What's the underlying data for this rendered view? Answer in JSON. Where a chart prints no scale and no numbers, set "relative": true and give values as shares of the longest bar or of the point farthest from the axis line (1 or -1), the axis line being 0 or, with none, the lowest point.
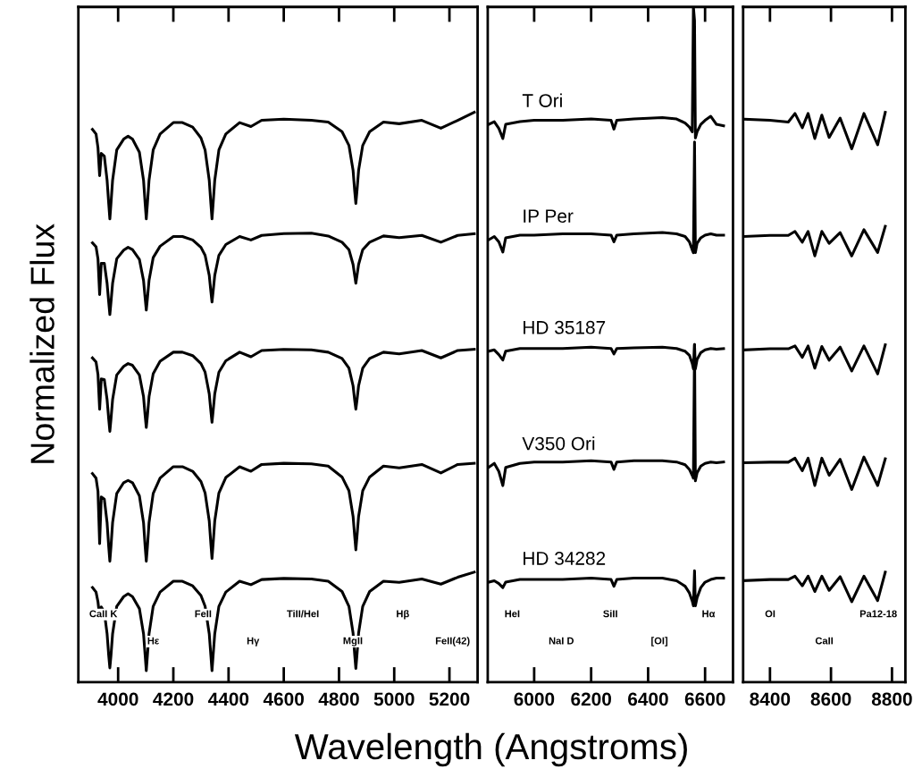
{
  "chart_data": [
    {
      "type": "line",
      "relative": true,
      "ylim": [
        0,
        1.185
      ],
      "ylabel": "Normalized Flux",
      "xlim": [
        3856,
        5302
      ],
      "xticks": [
        4000,
        4200,
        4400,
        4600,
        4800,
        5000,
        5200
      ],
      "x": [
        3907,
        3920,
        3927,
        3933,
        3939,
        3950,
        3960,
        3966,
        3970,
        3974,
        3980,
        3995,
        4020,
        4036,
        4052,
        4077,
        4092,
        4098,
        4102,
        4106,
        4112,
        4127,
        4152,
        4200,
        4233,
        4270,
        4300,
        4315,
        4330,
        4336,
        4340,
        4344,
        4350,
        4365,
        4390,
        4440,
        4481,
        4520,
        4600,
        4700,
        4761,
        4811,
        4836,
        4851,
        4857,
        4861,
        4865,
        4871,
        4886,
        4911,
        4961,
        5018,
        5100,
        5169,
        5230,
        5290
      ],
      "series": [
        {
          "color": "#000000",
          "values": [
            0.97,
            0.962,
            0.938,
            0.889,
            0.928,
            0.923,
            0.881,
            0.839,
            0.813,
            0.839,
            0.881,
            0.934,
            0.953,
            0.958,
            0.953,
            0.93,
            0.881,
            0.839,
            0.813,
            0.839,
            0.881,
            0.934,
            0.962,
            0.982,
            0.982,
            0.974,
            0.955,
            0.934,
            0.881,
            0.839,
            0.813,
            0.839,
            0.881,
            0.934,
            0.962,
            0.982,
            0.975,
            0.986,
            0.988,
            0.986,
            0.983,
            0.966,
            0.942,
            0.898,
            0.861,
            0.84,
            0.861,
            0.898,
            0.942,
            0.966,
            0.983,
            0.98,
            0.986,
            0.972,
            0.986,
            1.0
          ]
        },
        {
          "color": "#000000",
          "values": [
            0.771,
            0.764,
            0.743,
            0.68,
            0.735,
            0.735,
            0.7,
            0.666,
            0.645,
            0.666,
            0.7,
            0.743,
            0.758,
            0.763,
            0.759,
            0.742,
            0.705,
            0.673,
            0.653,
            0.673,
            0.705,
            0.745,
            0.765,
            0.782,
            0.782,
            0.776,
            0.763,
            0.749,
            0.714,
            0.685,
            0.667,
            0.685,
            0.714,
            0.749,
            0.768,
            0.782,
            0.776,
            0.784,
            0.787,
            0.788,
            0.783,
            0.772,
            0.759,
            0.733,
            0.713,
            0.7,
            0.713,
            0.733,
            0.759,
            0.772,
            0.783,
            0.78,
            0.784,
            0.772,
            0.784,
            0.787
          ]
        },
        {
          "color": "#000000",
          "values": [
            0.569,
            0.562,
            0.54,
            0.479,
            0.532,
            0.531,
            0.496,
            0.461,
            0.44,
            0.461,
            0.496,
            0.539,
            0.554,
            0.559,
            0.556,
            0.539,
            0.501,
            0.467,
            0.447,
            0.467,
            0.501,
            0.541,
            0.563,
            0.579,
            0.579,
            0.573,
            0.559,
            0.544,
            0.506,
            0.475,
            0.456,
            0.475,
            0.506,
            0.544,
            0.564,
            0.579,
            0.571,
            0.582,
            0.584,
            0.583,
            0.579,
            0.568,
            0.551,
            0.52,
            0.494,
            0.479,
            0.494,
            0.52,
            0.551,
            0.568,
            0.579,
            0.576,
            0.582,
            0.569,
            0.582,
            0.584
          ]
        },
        {
          "color": "#000000",
          "values": [
            0.366,
            0.358,
            0.335,
            0.243,
            0.325,
            0.321,
            0.28,
            0.237,
            0.212,
            0.237,
            0.28,
            0.331,
            0.35,
            0.354,
            0.35,
            0.327,
            0.28,
            0.237,
            0.212,
            0.237,
            0.28,
            0.331,
            0.358,
            0.378,
            0.378,
            0.37,
            0.352,
            0.332,
            0.283,
            0.242,
            0.217,
            0.242,
            0.283,
            0.332,
            0.359,
            0.378,
            0.37,
            0.382,
            0.384,
            0.383,
            0.379,
            0.36,
            0.336,
            0.291,
            0.255,
            0.232,
            0.255,
            0.291,
            0.336,
            0.36,
            0.379,
            0.376,
            0.382,
            0.367,
            0.382,
            0.384
          ]
        },
        {
          "color": "#000000",
          "values": [
            0.166,
            0.158,
            0.141,
            0.115,
            0.132,
            0.123,
            0.085,
            0.046,
            0.025,
            0.046,
            0.085,
            0.133,
            0.15,
            0.155,
            0.15,
            0.129,
            0.085,
            0.046,
            0.02,
            0.046,
            0.085,
            0.133,
            0.158,
            0.177,
            0.177,
            0.169,
            0.152,
            0.133,
            0.085,
            0.046,
            0.02,
            0.046,
            0.085,
            0.133,
            0.158,
            0.177,
            0.171,
            0.18,
            0.182,
            0.181,
            0.177,
            0.159,
            0.133,
            0.086,
            0.047,
            0.024,
            0.047,
            0.086,
            0.133,
            0.159,
            0.177,
            0.175,
            0.181,
            0.172,
            0.184,
            0.193
          ]
        }
      ],
      "annotations": [
        "CaII K",
        "Hε",
        "FeII",
        "Hγ",
        "TiII/HeI",
        "MgII",
        "Hβ",
        "FeII(42)"
      ]
    },
    {
      "type": "line",
      "relative": true,
      "xlabel": "Wavelength (Angstroms)",
      "xlim": [
        5837,
        6698
      ],
      "xticks": [
        6000,
        6200,
        6400,
        6600
      ],
      "x": [
        5840,
        5860,
        5876,
        5890,
        5900,
        5950,
        6000,
        6100,
        6200,
        6270,
        6280,
        6290,
        6350,
        6450,
        6500,
        6530,
        6545,
        6555,
        6559,
        6563,
        6566,
        6572,
        6585,
        6600,
        6620,
        6640,
        6665
      ],
      "series": [
        {
          "name": "T Ori",
          "color": "#000000",
          "values": [
            0.826,
            0.83,
            0.82,
            0.805,
            0.826,
            0.83,
            0.832,
            0.832,
            0.834,
            0.832,
            0.819,
            0.832,
            0.834,
            0.836,
            0.834,
            0.828,
            0.822,
            0.815,
            1.0,
            0.98,
            0.806,
            0.815,
            0.826,
            0.832,
            0.838,
            0.826,
            0.824
          ]
        },
        {
          "name": "IP Per",
          "color": "#000000",
          "values": [
            0.655,
            0.66,
            0.652,
            0.637,
            0.658,
            0.662,
            0.662,
            0.664,
            0.664,
            0.662,
            0.652,
            0.662,
            0.664,
            0.666,
            0.664,
            0.66,
            0.652,
            0.64,
            0.636,
            0.8,
            0.636,
            0.65,
            0.658,
            0.662,
            0.664,
            0.662,
            0.662
          ]
        },
        {
          "name": "HD 35187",
          "color": "#000000",
          "values": [
            0.49,
            0.492,
            0.485,
            0.477,
            0.49,
            0.494,
            0.494,
            0.494,
            0.496,
            0.494,
            0.486,
            0.494,
            0.495,
            0.496,
            0.494,
            0.49,
            0.484,
            0.472,
            0.464,
            0.5,
            0.464,
            0.478,
            0.488,
            0.492,
            0.494,
            0.493,
            0.494
          ]
        },
        {
          "name": "V350 Ori",
          "color": "#000000",
          "values": [
            0.318,
            0.324,
            0.312,
            0.291,
            0.318,
            0.324,
            0.326,
            0.326,
            0.328,
            0.326,
            0.315,
            0.326,
            0.328,
            0.328,
            0.326,
            0.322,
            0.315,
            0.306,
            0.302,
            0.5,
            0.298,
            0.31,
            0.32,
            0.324,
            0.326,
            0.325,
            0.326
          ]
        },
        {
          "name": "HD 34282",
          "color": "#000000",
          "values": [
            0.148,
            0.15,
            0.146,
            0.14,
            0.148,
            0.152,
            0.152,
            0.152,
            0.154,
            0.152,
            0.142,
            0.152,
            0.154,
            0.154,
            0.15,
            0.142,
            0.132,
            0.12,
            0.113,
            0.165,
            0.113,
            0.125,
            0.14,
            0.148,
            0.152,
            0.154,
            0.154
          ]
        }
      ],
      "annotations": [
        "HeI",
        "NaI D",
        "SiII",
        "[OI]",
        "Hα"
      ]
    },
    {
      "type": "line",
      "relative": true,
      "ylim": [
        0,
        1.185
      ],
      "xlim": [
        8312,
        8844
      ],
      "xticks": [
        8400,
        8600,
        8800
      ],
      "x": [
        8315,
        8400,
        8460,
        8482,
        8506,
        8525,
        8547,
        8570,
        8594,
        8630,
        8668,
        8708,
        8753,
        8778
      ],
      "series": [
        {
          "color": "#000000",
          "values": [
            0.988,
            0.986,
            0.983,
            0.998,
            0.973,
            0.998,
            0.954,
            0.995,
            0.956,
            0.99,
            0.936,
            0.998,
            0.943,
            1.0
          ]
        },
        {
          "color": "#000000",
          "values": [
            0.782,
            0.784,
            0.784,
            0.791,
            0.772,
            0.791,
            0.748,
            0.791,
            0.77,
            0.789,
            0.748,
            0.794,
            0.754,
            0.8
          ]
        },
        {
          "color": "#000000",
          "values": [
            0.583,
            0.585,
            0.585,
            0.59,
            0.57,
            0.59,
            0.551,
            0.589,
            0.565,
            0.588,
            0.546,
            0.59,
            0.541,
            0.592
          ]
        },
        {
          "color": "#000000",
          "values": [
            0.385,
            0.386,
            0.386,
            0.393,
            0.371,
            0.393,
            0.345,
            0.393,
            0.363,
            0.391,
            0.338,
            0.395,
            0.345,
            0.392
          ]
        },
        {
          "color": "#000000",
          "values": [
            0.178,
            0.18,
            0.18,
            0.186,
            0.169,
            0.186,
            0.159,
            0.186,
            0.161,
            0.185,
            0.141,
            0.186,
            0.143,
            0.193
          ]
        }
      ],
      "annotations": [
        "OI",
        "CaII",
        "Pa12-18"
      ]
    }
  ]
}
